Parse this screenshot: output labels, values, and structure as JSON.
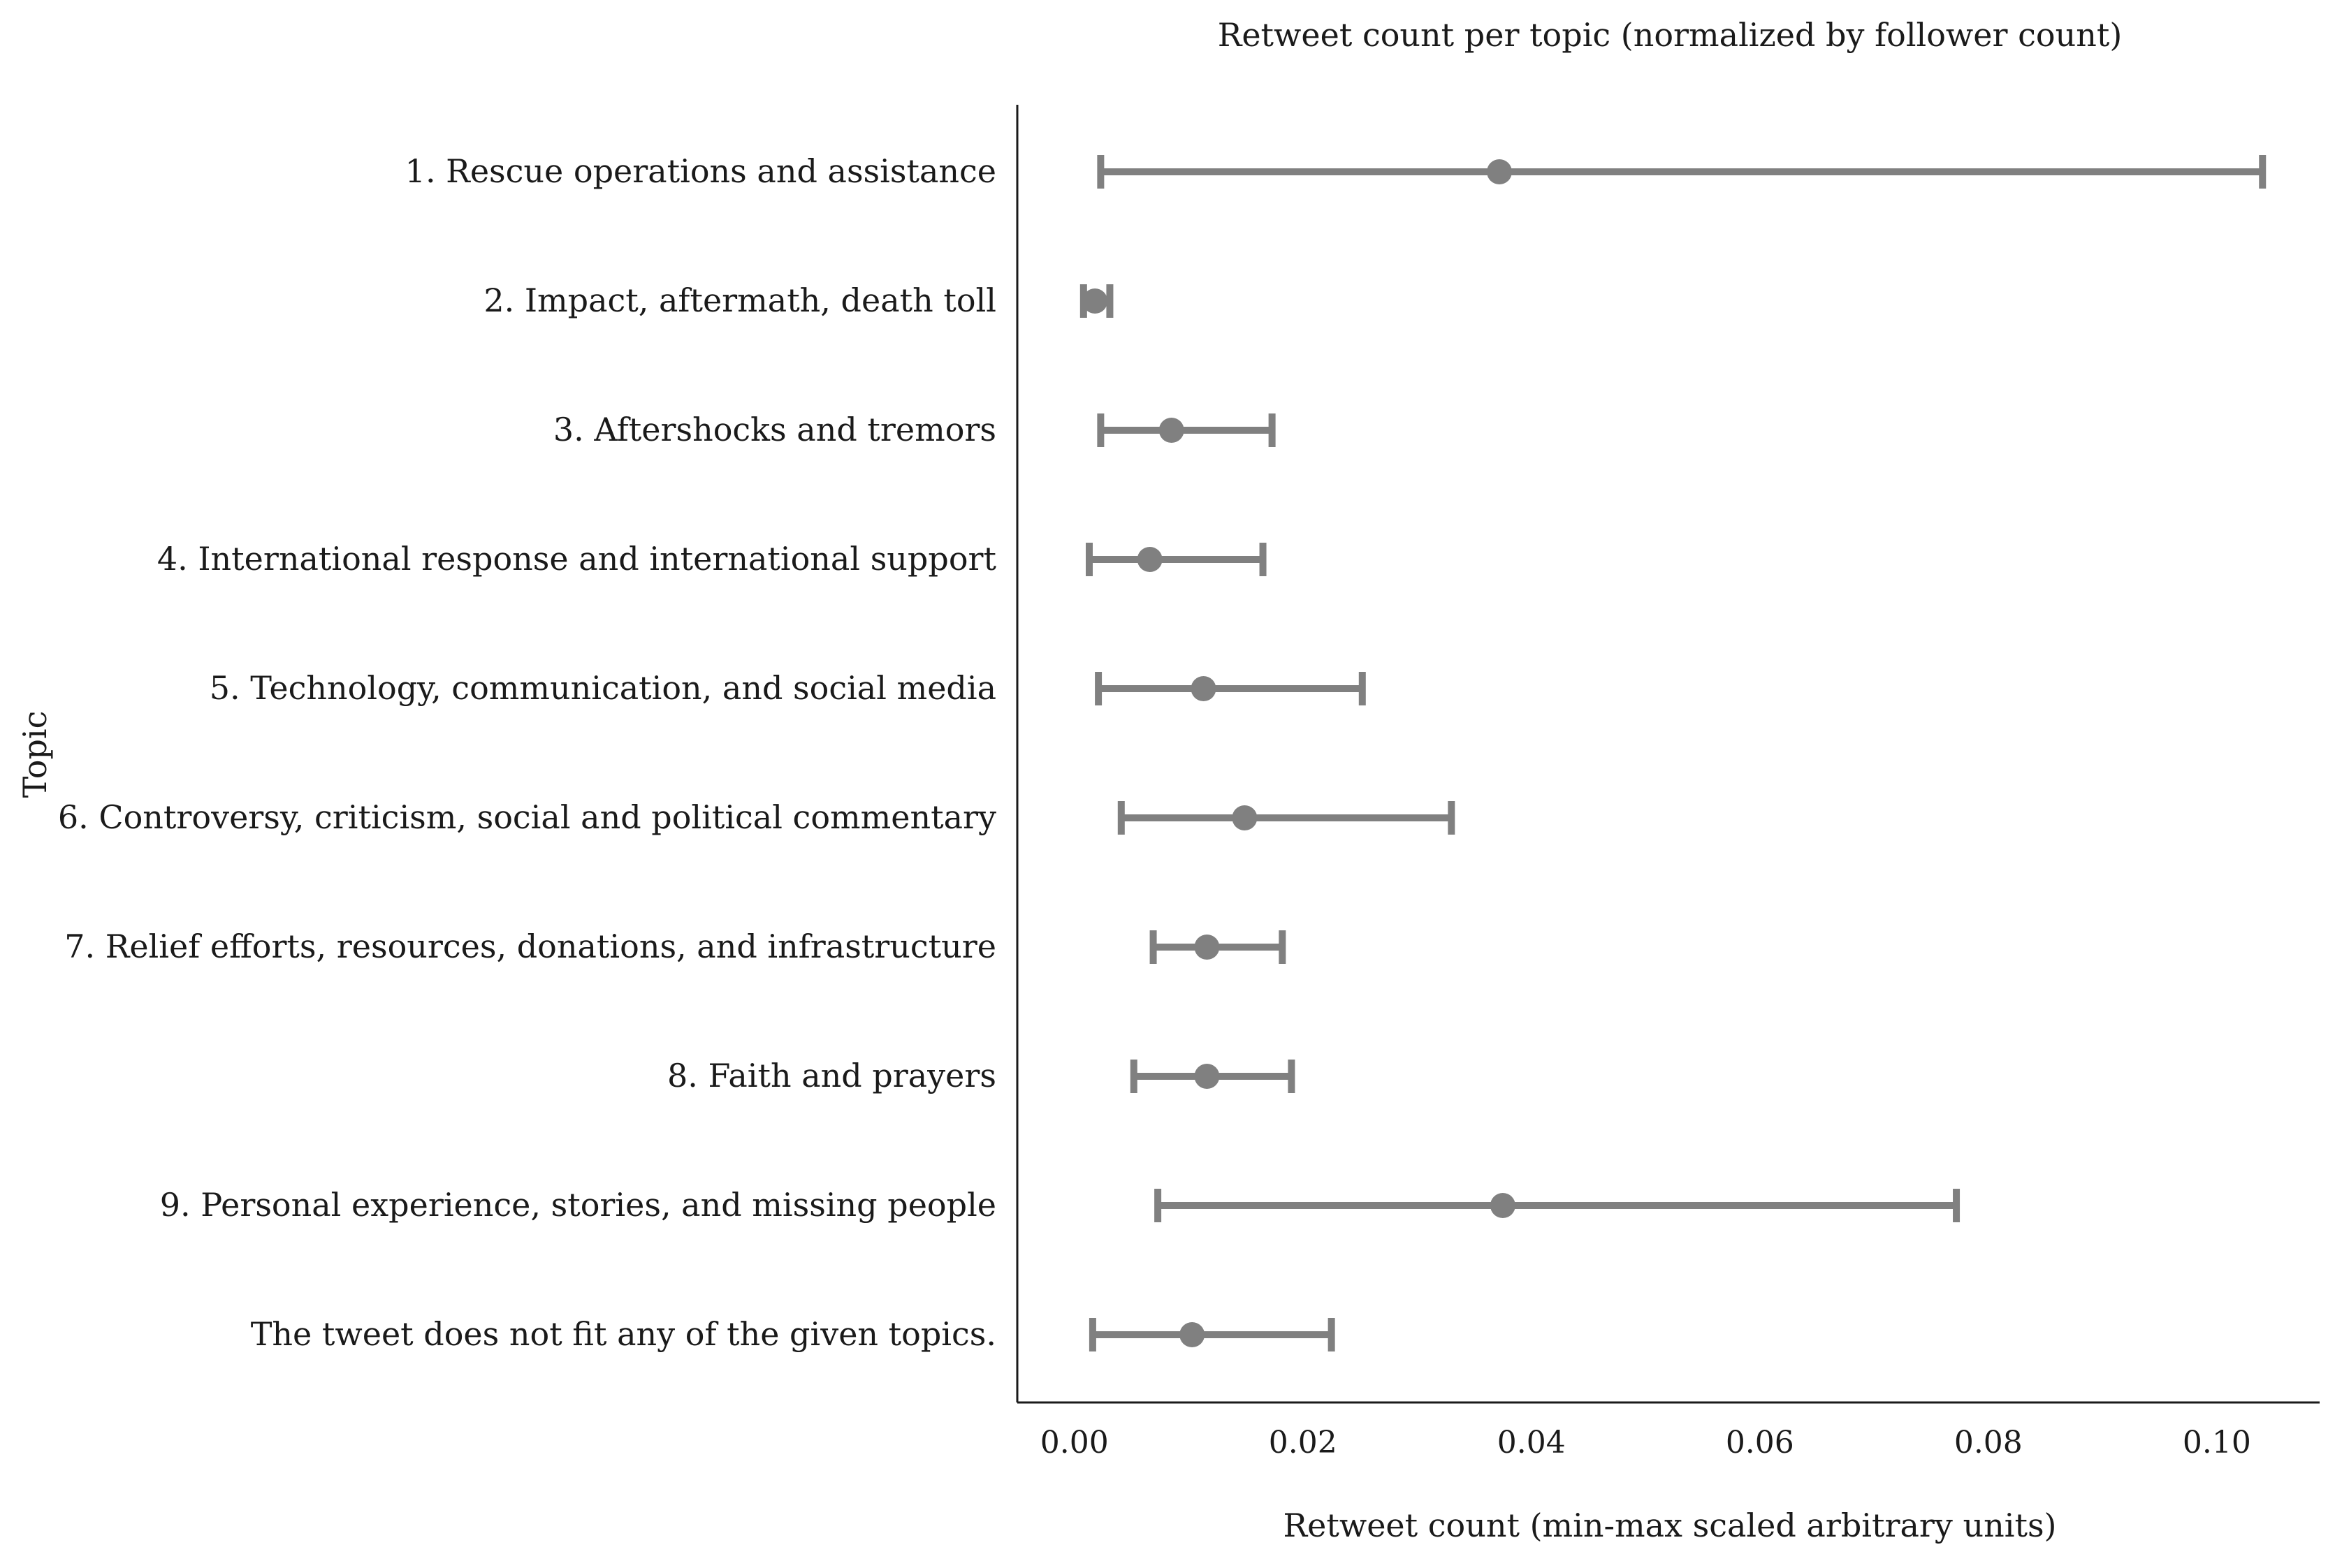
{
  "chart_data": {
    "type": "errorbar",
    "title": "Retweet count per topic (normalized by follower count)",
    "xlabel": "Retweet count (min-max scaled arbitrary units)",
    "ylabel": "Topic",
    "xlim": [
      -0.005,
      0.109
    ],
    "xticks": [
      0.0,
      0.02,
      0.04,
      0.06,
      0.08,
      0.1
    ],
    "xtick_labels": [
      "0.00",
      "0.02",
      "0.04",
      "0.06",
      "0.08",
      "0.10"
    ],
    "categories": [
      "1. Rescue operations and assistance",
      "2. Impact, aftermath, death toll",
      "3. Aftershocks and tremors",
      "4. International response and international support",
      "5. Technology, communication, and social media",
      "6. Controversy, criticism, social and political commentary",
      "7. Relief efforts, resources, donations, and infrastructure",
      "8. Faith and prayers",
      "9. Personal experience, stories, and missing people",
      "The tweet does not fit any of the given topics."
    ],
    "values": [
      0.0372,
      0.0018,
      0.0085,
      0.0066,
      0.0113,
      0.0149,
      0.0116,
      0.0116,
      0.0375,
      0.0103
    ],
    "lower": [
      0.0023,
      0.0008,
      0.0023,
      0.0013,
      0.0021,
      0.0041,
      0.0069,
      0.0052,
      0.0073,
      0.0016
    ],
    "upper": [
      0.104,
      0.0031,
      0.0173,
      0.0165,
      0.0252,
      0.033,
      0.0182,
      0.019,
      0.0772,
      0.0225
    ],
    "color": "#808080",
    "grid": false,
    "legend": "none"
  }
}
